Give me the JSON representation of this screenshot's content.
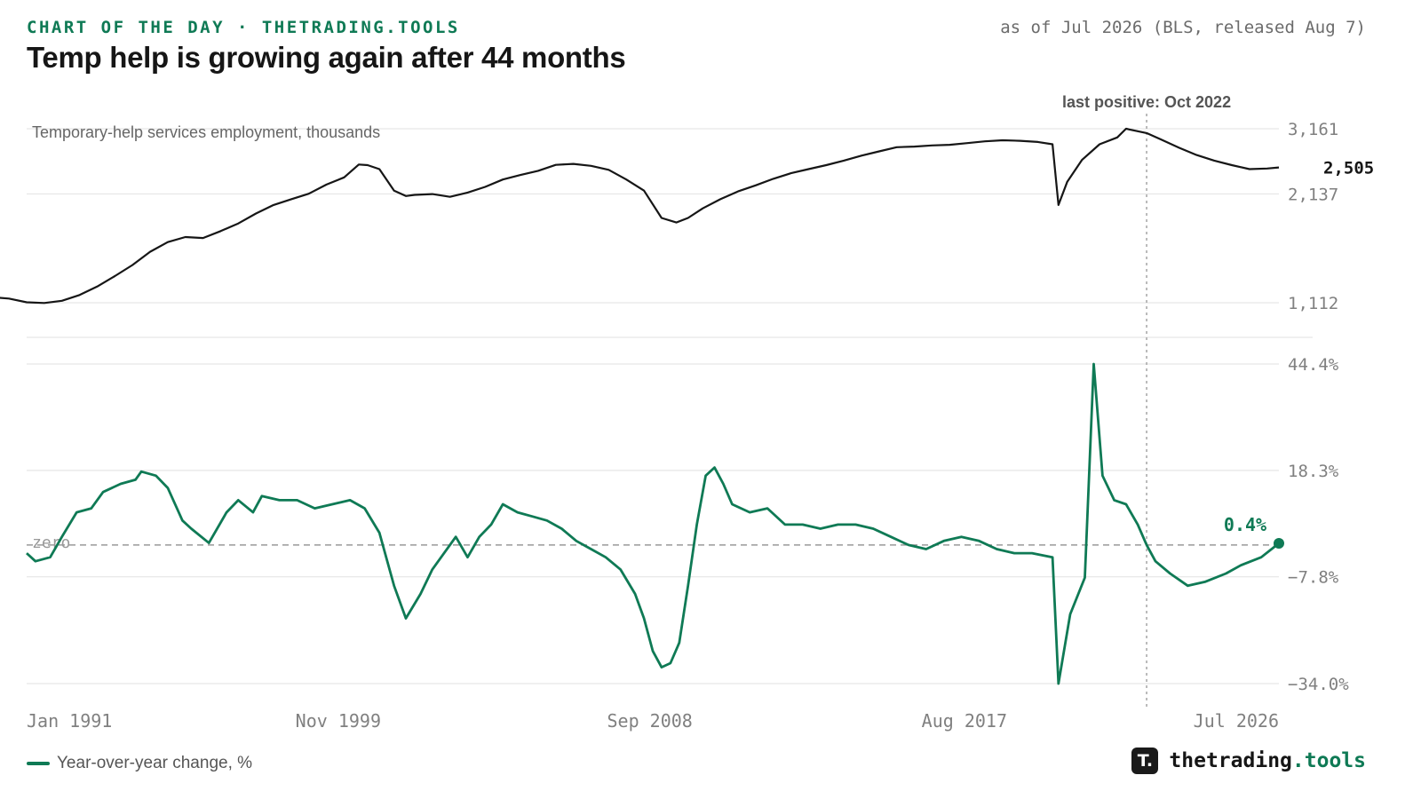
{
  "header": {
    "eyebrow": "CHART OF THE DAY · THETRADING.TOOLS",
    "asof": "as of Jul 2026 (BLS, released Aug 7)",
    "title": "Temp help is growing again after 44 months"
  },
  "colors": {
    "level_line": "#161616",
    "yoy_line": "#0f7a55",
    "grid": "#e6e6e6",
    "zero_line": "#999999",
    "annotation_line": "#aaaaaa"
  },
  "chart_data": [
    {
      "type": "line",
      "panel": "top",
      "label": "Temporary-help services employment, thousands",
      "yscale": "log",
      "yticks": [
        1112,
        2137,
        3161
      ],
      "ytick_labels": [
        "1,112",
        "2,137",
        "3,161"
      ],
      "last_value": 2505,
      "last_value_label": "2,505",
      "x_start": "1990-01",
      "x_end": "2026-07",
      "points": [
        [
          "1990-01",
          1150
        ],
        [
          "1990-07",
          1140
        ],
        [
          "1991-01",
          1115
        ],
        [
          "1991-07",
          1110
        ],
        [
          "1992-01",
          1125
        ],
        [
          "1992-07",
          1165
        ],
        [
          "1993-01",
          1225
        ],
        [
          "1993-07",
          1305
        ],
        [
          "1994-01",
          1395
        ],
        [
          "1994-07",
          1510
        ],
        [
          "1995-01",
          1600
        ],
        [
          "1995-07",
          1650
        ],
        [
          "1996-01",
          1640
        ],
        [
          "1996-07",
          1710
        ],
        [
          "1997-01",
          1790
        ],
        [
          "1997-07",
          1900
        ],
        [
          "1998-01",
          2000
        ],
        [
          "1998-07",
          2070
        ],
        [
          "1999-01",
          2140
        ],
        [
          "1999-07",
          2260
        ],
        [
          "2000-01",
          2360
        ],
        [
          "2000-06",
          2550
        ],
        [
          "2000-09",
          2540
        ],
        [
          "2001-01",
          2480
        ],
        [
          "2001-06",
          2180
        ],
        [
          "2001-10",
          2110
        ],
        [
          "2002-01",
          2125
        ],
        [
          "2002-07",
          2135
        ],
        [
          "2003-01",
          2100
        ],
        [
          "2003-07",
          2155
        ],
        [
          "2004-01",
          2230
        ],
        [
          "2004-07",
          2330
        ],
        [
          "2005-01",
          2395
        ],
        [
          "2005-07",
          2455
        ],
        [
          "2006-01",
          2545
        ],
        [
          "2006-07",
          2560
        ],
        [
          "2007-01",
          2530
        ],
        [
          "2007-07",
          2470
        ],
        [
          "2008-01",
          2330
        ],
        [
          "2008-07",
          2180
        ],
        [
          "2009-01",
          1850
        ],
        [
          "2009-06",
          1800
        ],
        [
          "2009-10",
          1850
        ],
        [
          "2010-03",
          1960
        ],
        [
          "2010-09",
          2070
        ],
        [
          "2011-03",
          2170
        ],
        [
          "2011-09",
          2250
        ],
        [
          "2012-03",
          2340
        ],
        [
          "2012-09",
          2420
        ],
        [
          "2013-03",
          2480
        ],
        [
          "2013-09",
          2540
        ],
        [
          "2014-03",
          2610
        ],
        [
          "2014-09",
          2690
        ],
        [
          "2015-03",
          2760
        ],
        [
          "2015-09",
          2830
        ],
        [
          "2016-03",
          2840
        ],
        [
          "2016-09",
          2860
        ],
        [
          "2017-03",
          2870
        ],
        [
          "2017-09",
          2900
        ],
        [
          "2018-03",
          2930
        ],
        [
          "2018-09",
          2950
        ],
        [
          "2019-03",
          2940
        ],
        [
          "2019-09",
          2920
        ],
        [
          "2020-02",
          2880
        ],
        [
          "2020-04",
          2000
        ],
        [
          "2020-07",
          2300
        ],
        [
          "2020-12",
          2620
        ],
        [
          "2021-06",
          2880
        ],
        [
          "2021-12",
          3000
        ],
        [
          "2022-03",
          3161
        ],
        [
          "2022-10",
          3080
        ],
        [
          "2023-03",
          2960
        ],
        [
          "2023-09",
          2820
        ],
        [
          "2024-03",
          2700
        ],
        [
          "2024-09",
          2610
        ],
        [
          "2025-03",
          2540
        ],
        [
          "2025-09",
          2480
        ],
        [
          "2026-03",
          2490
        ],
        [
          "2026-07",
          2505
        ]
      ]
    },
    {
      "type": "line",
      "panel": "bottom",
      "series_name": "Year-over-year change, %",
      "yticks": [
        -34.0,
        -7.8,
        18.3,
        44.4
      ],
      "ytick_labels": [
        "−34.0%",
        "−7.8%",
        "18.3%",
        "44.4%"
      ],
      "zero_label": "zero",
      "last_value": 0.4,
      "last_value_label": "0.4%",
      "x_start": "1991-01",
      "x_end": "2026-07",
      "points": [
        [
          "1991-01",
          -2
        ],
        [
          "1991-04",
          -4
        ],
        [
          "1991-09",
          -3
        ],
        [
          "1992-01",
          2
        ],
        [
          "1992-06",
          8
        ],
        [
          "1992-11",
          9
        ],
        [
          "1993-03",
          13
        ],
        [
          "1993-09",
          15
        ],
        [
          "1994-02",
          16
        ],
        [
          "1994-04",
          18
        ],
        [
          "1994-09",
          17
        ],
        [
          "1995-01",
          14
        ],
        [
          "1995-06",
          6
        ],
        [
          "1995-09",
          4
        ],
        [
          "1996-03",
          0.5
        ],
        [
          "1996-09",
          8
        ],
        [
          "1997-01",
          11
        ],
        [
          "1997-06",
          8
        ],
        [
          "1997-09",
          12
        ],
        [
          "1998-03",
          11
        ],
        [
          "1998-09",
          11
        ],
        [
          "1999-03",
          9
        ],
        [
          "1999-09",
          10
        ],
        [
          "2000-03",
          11
        ],
        [
          "2000-08",
          9
        ],
        [
          "2001-01",
          3
        ],
        [
          "2001-06",
          -10
        ],
        [
          "2001-10",
          -18
        ],
        [
          "2002-03",
          -12
        ],
        [
          "2002-07",
          -6
        ],
        [
          "2002-11",
          -2
        ],
        [
          "2003-03",
          2
        ],
        [
          "2003-07",
          -3
        ],
        [
          "2003-11",
          2
        ],
        [
          "2004-03",
          5
        ],
        [
          "2004-07",
          10
        ],
        [
          "2004-12",
          8
        ],
        [
          "2005-05",
          7
        ],
        [
          "2005-10",
          6
        ],
        [
          "2006-03",
          4
        ],
        [
          "2006-08",
          1
        ],
        [
          "2007-01",
          -1
        ],
        [
          "2007-06",
          -3
        ],
        [
          "2007-11",
          -6
        ],
        [
          "2008-04",
          -12
        ],
        [
          "2008-07",
          -18
        ],
        [
          "2008-10",
          -26
        ],
        [
          "2009-01",
          -30
        ],
        [
          "2009-04",
          -29
        ],
        [
          "2009-07",
          -24
        ],
        [
          "2009-10",
          -10
        ],
        [
          "2010-01",
          5
        ],
        [
          "2010-04",
          17
        ],
        [
          "2010-07",
          19
        ],
        [
          "2010-10",
          15
        ],
        [
          "2011-01",
          10
        ],
        [
          "2011-07",
          8
        ],
        [
          "2012-01",
          9
        ],
        [
          "2012-07",
          5
        ],
        [
          "2013-01",
          5
        ],
        [
          "2013-07",
          4
        ],
        [
          "2014-01",
          5
        ],
        [
          "2014-07",
          5
        ],
        [
          "2015-01",
          4
        ],
        [
          "2015-07",
          2
        ],
        [
          "2016-01",
          0
        ],
        [
          "2016-07",
          -1
        ],
        [
          "2017-01",
          1
        ],
        [
          "2017-07",
          2
        ],
        [
          "2018-01",
          1
        ],
        [
          "2018-07",
          -1
        ],
        [
          "2019-01",
          -2
        ],
        [
          "2019-07",
          -2
        ],
        [
          "2020-02",
          -3
        ],
        [
          "2020-04",
          -34
        ],
        [
          "2020-08",
          -17
        ],
        [
          "2021-01",
          -8
        ],
        [
          "2021-04",
          44.4
        ],
        [
          "2021-07",
          17
        ],
        [
          "2021-11",
          11
        ],
        [
          "2022-03",
          10
        ],
        [
          "2022-07",
          5
        ],
        [
          "2022-10",
          0
        ],
        [
          "2023-01",
          -4
        ],
        [
          "2023-06",
          -7
        ],
        [
          "2023-12",
          -10
        ],
        [
          "2024-06",
          -9
        ],
        [
          "2025-01",
          -7
        ],
        [
          "2025-06",
          -5
        ],
        [
          "2026-01",
          -3
        ],
        [
          "2026-07",
          0.4
        ]
      ]
    }
  ],
  "x_axis": {
    "ticks": [
      {
        "date": "1991-01",
        "label": "Jan 1991"
      },
      {
        "date": "1999-11",
        "label": "Nov 1999"
      },
      {
        "date": "2008-09",
        "label": "Sep 2008"
      },
      {
        "date": "2017-08",
        "label": "Aug 2017"
      },
      {
        "date": "2026-07",
        "label": "Jul 2026"
      }
    ]
  },
  "annotation": {
    "date": "2022-10",
    "label": "last positive: Oct 2022"
  },
  "legend": {
    "label": "Year-over-year change, %"
  },
  "brand": {
    "logo": "T.",
    "name": "thetrading",
    "tld": ".tools"
  }
}
